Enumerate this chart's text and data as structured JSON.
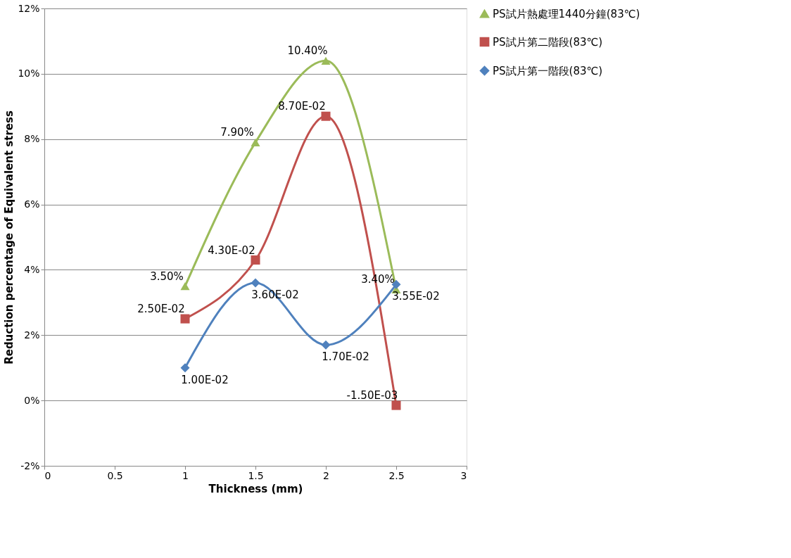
{
  "chart_data": {
    "type": "line",
    "xlabel": "Thickness (mm)",
    "ylabel": "Reduction percentage of Equivalent stress",
    "x": [
      1,
      1.5,
      2,
      2.5
    ],
    "series": [
      {
        "name": "PS試片熱處理1440分鐘(83℃)",
        "color": "#9bbb59",
        "marker": "triangle",
        "values": [
          0.035,
          0.079,
          0.104,
          0.034
        ],
        "value_labels": [
          "3.50%",
          "7.90%",
          "10.40%",
          "3.40%"
        ]
      },
      {
        "name": "PS試片第二階段(83℃)",
        "color": "#c0504d",
        "marker": "square",
        "values": [
          0.025,
          0.043,
          0.087,
          -0.0015
        ],
        "value_labels": [
          "2.50E-02",
          "4.30E-02",
          "8.70E-02",
          "-1.50E-03"
        ]
      },
      {
        "name": "PS試片第一階段(83℃)",
        "color": "#4f81bd",
        "marker": "diamond",
        "values": [
          0.01,
          0.036,
          0.017,
          0.0355
        ],
        "value_labels": [
          "1.00E-02",
          "3.60E-02",
          "1.70E-02",
          "3.55E-02"
        ]
      }
    ],
    "xlim": [
      0,
      3
    ],
    "xticks": [
      0,
      0.5,
      1,
      1.5,
      2,
      2.5,
      3
    ],
    "ylim": [
      -0.02,
      0.12
    ],
    "yticks": [
      {
        "value": -0.02,
        "label": "-2%"
      },
      {
        "value": 0,
        "label": "0%"
      },
      {
        "value": 0.02,
        "label": "2%"
      },
      {
        "value": 0.04,
        "label": "4%"
      },
      {
        "value": 0.06,
        "label": "6%"
      },
      {
        "value": 0.08,
        "label": "8%"
      },
      {
        "value": 0.1,
        "label": "10%"
      },
      {
        "value": 0.12,
        "label": "12%"
      }
    ],
    "grid": "y",
    "legend": "right",
    "line_style": "solid"
  }
}
